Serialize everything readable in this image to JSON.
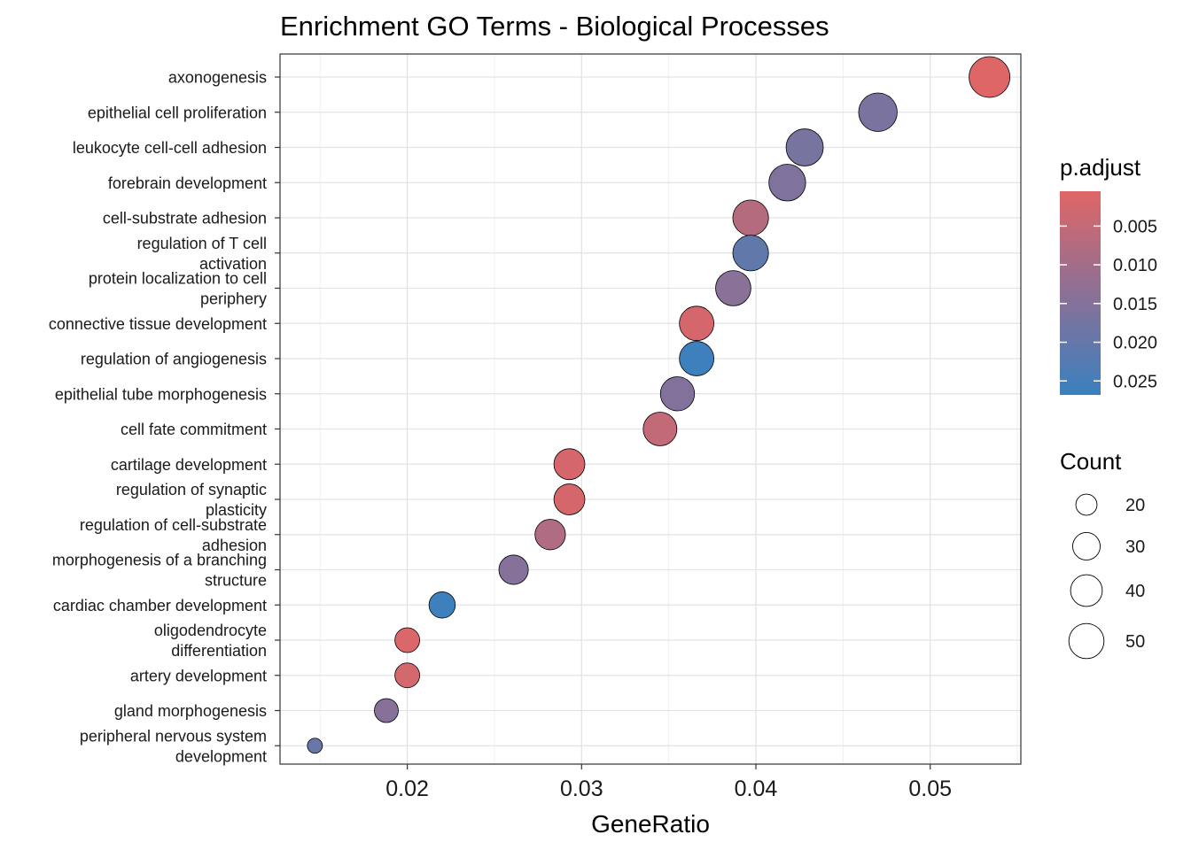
{
  "chart_data": {
    "type": "scatter",
    "title": "Enrichment GO Terms - Biological Processes",
    "xlabel": "GeneRatio",
    "ylabel": "",
    "xlim": [
      0.0127,
      0.0552
    ],
    "xticks": [
      0.02,
      0.03,
      0.04,
      0.05
    ],
    "xtick_labels": [
      "0.02",
      "0.03",
      "0.04",
      "0.05"
    ],
    "grid": true,
    "terms": [
      {
        "label": "axonogenesis",
        "gene_ratio": 0.0534,
        "count": 58,
        "p_adjust": 0.0008
      },
      {
        "label": "epithelial cell proliferation",
        "gene_ratio": 0.047,
        "count": 51,
        "p_adjust": 0.0165
      },
      {
        "label": "leukocyte cell-cell adhesion",
        "gene_ratio": 0.0428,
        "count": 47,
        "p_adjust": 0.0168
      },
      {
        "label": "forebrain development",
        "gene_ratio": 0.0418,
        "count": 46,
        "p_adjust": 0.0158
      },
      {
        "label": "cell-substrate adhesion",
        "gene_ratio": 0.0397,
        "count": 43,
        "p_adjust": 0.0072
      },
      {
        "label": "regulation of T cell\nactivation",
        "gene_ratio": 0.0397,
        "count": 43,
        "p_adjust": 0.0205
      },
      {
        "label": "protein localization to cell\nperiphery",
        "gene_ratio": 0.0387,
        "count": 42,
        "p_adjust": 0.0142
      },
      {
        "label": "connective tissue development",
        "gene_ratio": 0.0366,
        "count": 40,
        "p_adjust": 0.0022
      },
      {
        "label": "regulation of angiogenesis",
        "gene_ratio": 0.0366,
        "count": 40,
        "p_adjust": 0.0262
      },
      {
        "label": "epithelial tube morphogenesis",
        "gene_ratio": 0.0355,
        "count": 39,
        "p_adjust": 0.0152
      },
      {
        "label": "cell fate commitment",
        "gene_ratio": 0.0345,
        "count": 38,
        "p_adjust": 0.0052
      },
      {
        "label": "cartilage development",
        "gene_ratio": 0.0293,
        "count": 32,
        "p_adjust": 0.0022
      },
      {
        "label": "regulation of synaptic\nplasticity",
        "gene_ratio": 0.0293,
        "count": 32,
        "p_adjust": 0.0022
      },
      {
        "label": "regulation of cell-substrate\nadhesion",
        "gene_ratio": 0.0282,
        "count": 31,
        "p_adjust": 0.0082
      },
      {
        "label": "morphogenesis of a branching\nstructure",
        "gene_ratio": 0.0261,
        "count": 29,
        "p_adjust": 0.0148
      },
      {
        "label": "cardiac chamber development",
        "gene_ratio": 0.022,
        "count": 24,
        "p_adjust": 0.0262
      },
      {
        "label": "oligodendrocyte\ndifferentiation",
        "gene_ratio": 0.02,
        "count": 22,
        "p_adjust": 0.0015
      },
      {
        "label": "artery development",
        "gene_ratio": 0.02,
        "count": 22,
        "p_adjust": 0.0025
      },
      {
        "label": "gland morphogenesis",
        "gene_ratio": 0.0188,
        "count": 21,
        "p_adjust": 0.0145
      },
      {
        "label": "peripheral nervous system\ndevelopment",
        "gene_ratio": 0.0147,
        "count": 16,
        "p_adjust": 0.0195
      }
    ],
    "color_legend": {
      "title": "p.adjust",
      "breaks": [
        0.005,
        0.01,
        0.015,
        0.02,
        0.025
      ],
      "labels": [
        "0.005",
        "0.010",
        "0.015",
        "0.020",
        "0.025"
      ],
      "range": [
        0.0005,
        0.0268
      ],
      "low_color": "#E06666",
      "high_color": "#3A80BF"
    },
    "size_legend": {
      "title": "Count",
      "breaks": [
        20,
        30,
        40,
        50
      ],
      "labels": [
        "20",
        "30",
        "40",
        "50"
      ],
      "range": [
        16,
        58
      ]
    }
  }
}
